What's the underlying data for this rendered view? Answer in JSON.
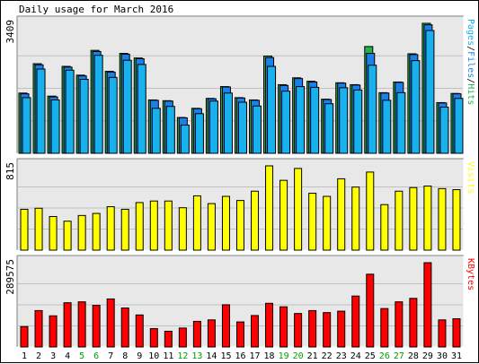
{
  "page": {
    "title": "Daily usage for March 2016"
  },
  "colors": {
    "hits": "#00805c",
    "hits_fill": "#22b24c",
    "files": "#0000ff",
    "files_fill": "#1e7fe8",
    "pages": "#00ffff",
    "pages_fill": "#19b0ee",
    "visits": "#ffff00",
    "kbytes": "#ff0000",
    "weekend_label": "#00a000",
    "grid": "#c0c0c0",
    "panel_bg": "#e8e8e8"
  },
  "chart_data": [
    {
      "type": "bar",
      "title": "Daily usage for March 2016",
      "panel": "hits-files-pages",
      "ymax_label": "3409",
      "ylim": [
        0,
        3409
      ],
      "legend": {
        "parts": [
          "Pages",
          "/",
          "Files",
          "/",
          "Hits"
        ],
        "placement": "right"
      },
      "categories": [
        "1",
        "2",
        "3",
        "4",
        "5",
        "6",
        "7",
        "8",
        "9",
        "10",
        "11",
        "12",
        "13",
        "14",
        "15",
        "16",
        "17",
        "18",
        "19",
        "20",
        "21",
        "22",
        "23",
        "24",
        "25",
        "26",
        "27",
        "28",
        "29",
        "30",
        "31"
      ],
      "weekend_days": [
        5,
        6,
        12,
        13,
        19,
        20,
        26,
        27
      ],
      "series": [
        {
          "name": "Hits",
          "values": [
            1580,
            2350,
            1500,
            2280,
            2050,
            2700,
            2150,
            2620,
            2500,
            1400,
            1380,
            940,
            1180,
            1440,
            1750,
            1460,
            1400,
            2550,
            1800,
            1980,
            1890,
            1420,
            1850,
            1800,
            2800,
            1590,
            1870,
            2610,
            3409,
            1330,
            1570
          ]
        },
        {
          "name": "Files",
          "values": [
            1560,
            2320,
            1480,
            2260,
            2030,
            2670,
            2130,
            2600,
            2480,
            1390,
            1370,
            930,
            1170,
            1430,
            1740,
            1450,
            1390,
            2510,
            1780,
            1960,
            1870,
            1410,
            1840,
            1790,
            2620,
            1580,
            1860,
            2590,
            3370,
            1320,
            1560
          ]
        },
        {
          "name": "Pages",
          "values": [
            1460,
            2210,
            1400,
            2180,
            1940,
            2570,
            1990,
            2440,
            2330,
            1180,
            1230,
            740,
            1040,
            1370,
            1580,
            1340,
            1240,
            2280,
            1630,
            1750,
            1730,
            1300,
            1720,
            1660,
            2310,
            1390,
            1590,
            2430,
            3220,
            1210,
            1440
          ]
        }
      ]
    },
    {
      "type": "bar",
      "panel": "visits",
      "ymax_label": "815",
      "ylim": [
        0,
        815
      ],
      "legend": {
        "parts": [
          "Visits"
        ],
        "placement": "right"
      },
      "categories": [
        "1",
        "2",
        "3",
        "4",
        "5",
        "6",
        "7",
        "8",
        "9",
        "10",
        "11",
        "12",
        "13",
        "14",
        "15",
        "16",
        "17",
        "18",
        "19",
        "20",
        "21",
        "22",
        "23",
        "24",
        "25",
        "26",
        "27",
        "28",
        "29",
        "30",
        "31"
      ],
      "series": [
        {
          "name": "Visits",
          "values": [
            395,
            405,
            325,
            280,
            335,
            355,
            420,
            395,
            460,
            475,
            475,
            410,
            525,
            450,
            520,
            480,
            570,
            815,
            675,
            790,
            550,
            520,
            690,
            610,
            755,
            440,
            570,
            605,
            620,
            595,
            585
          ]
        }
      ]
    },
    {
      "type": "bar",
      "panel": "kbytes",
      "ymax_label": "289575",
      "ylim": [
        0,
        289575
      ],
      "legend": {
        "parts": [
          "KBytes"
        ],
        "placement": "right"
      },
      "categories": [
        "1",
        "2",
        "3",
        "4",
        "5",
        "6",
        "7",
        "8",
        "9",
        "10",
        "11",
        "12",
        "13",
        "14",
        "15",
        "16",
        "17",
        "18",
        "19",
        "20",
        "21",
        "22",
        "23",
        "24",
        "25",
        "26",
        "27",
        "28",
        "29",
        "30",
        "31"
      ],
      "series": [
        {
          "name": "KBytes",
          "values": [
            70000,
            125000,
            107000,
            152000,
            155000,
            143000,
            165000,
            134000,
            110000,
            63000,
            54000,
            65000,
            88000,
            93000,
            145000,
            86000,
            108000,
            150000,
            138000,
            115000,
            125000,
            118000,
            123000,
            175000,
            250000,
            132000,
            155000,
            167000,
            289575,
            93000,
            97000
          ]
        }
      ]
    }
  ]
}
